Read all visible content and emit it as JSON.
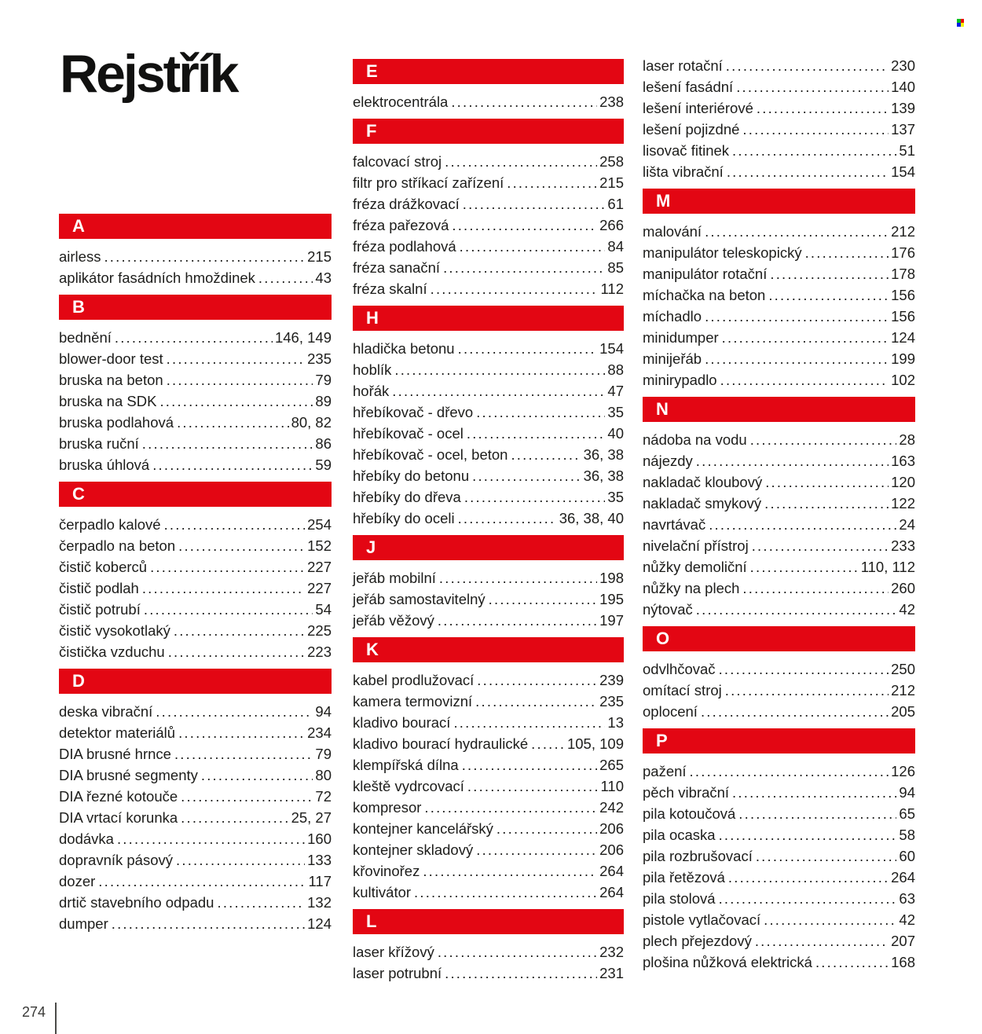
{
  "page": {
    "title": "Rejstřík",
    "footer_page_number": "274"
  },
  "colors": {
    "section_bar": "#e30613",
    "text": "#1d1d1b",
    "corner_icon_squares": [
      "#00c221",
      "#ee0000",
      "#0019e6",
      "#f6f600"
    ]
  },
  "columns": [
    {
      "sections": [
        {
          "letter": "A",
          "entries": [
            {
              "label": "airless",
              "pages": "215"
            },
            {
              "label": "aplikátor fasádních hmoždinek",
              "pages": "43"
            }
          ]
        },
        {
          "letter": "B",
          "entries": [
            {
              "label": "bednění",
              "pages": "146, 149"
            },
            {
              "label": "blower-door test",
              "pages": "235"
            },
            {
              "label": "bruska na beton",
              "pages": "79"
            },
            {
              "label": "bruska na SDK",
              "pages": "89"
            },
            {
              "label": "bruska podlahová",
              "pages": "80, 82"
            },
            {
              "label": "bruska ruční",
              "pages": "86"
            },
            {
              "label": "bruska úhlová",
              "pages": "59"
            }
          ]
        },
        {
          "letter": "C",
          "entries": [
            {
              "label": "čerpadlo kalové",
              "pages": "254"
            },
            {
              "label": "čerpadlo na beton",
              "pages": "152"
            },
            {
              "label": "čistič koberců",
              "pages": "227"
            },
            {
              "label": "čistič podlah",
              "pages": "227"
            },
            {
              "label": "čistič potrubí",
              "pages": "54"
            },
            {
              "label": "čistič vysokotlaký",
              "pages": "225"
            },
            {
              "label": "čistička vzduchu",
              "pages": "223"
            }
          ]
        },
        {
          "letter": "D",
          "entries": [
            {
              "label": "deska vibrační",
              "pages": "94"
            },
            {
              "label": "detektor materiálů",
              "pages": "234"
            },
            {
              "label": "DIA brusné hrnce",
              "pages": "79"
            },
            {
              "label": "DIA brusné segmenty",
              "pages": "80"
            },
            {
              "label": "DIA řezné kotouče",
              "pages": "72"
            },
            {
              "label": "DIA vrtací korunka",
              "pages": "25, 27"
            },
            {
              "label": "dodávka",
              "pages": "160"
            },
            {
              "label": "dopravník pásový",
              "pages": "133"
            },
            {
              "label": "dozer",
              "pages": "117"
            },
            {
              "label": "drtič stavebního odpadu",
              "pages": "132"
            },
            {
              "label": "dumper",
              "pages": "124"
            }
          ]
        }
      ]
    },
    {
      "sections": [
        {
          "letter": "E",
          "entries": [
            {
              "label": "elektrocentrála",
              "pages": "238"
            }
          ]
        },
        {
          "letter": "F",
          "entries": [
            {
              "label": "falcovací stroj",
              "pages": "258"
            },
            {
              "label": "filtr pro stříkací zařízení",
              "pages": "215"
            },
            {
              "label": "fréza drážkovací",
              "pages": "61"
            },
            {
              "label": "fréza pařezová",
              "pages": "266"
            },
            {
              "label": "fréza podlahová",
              "pages": "84"
            },
            {
              "label": "fréza sanační",
              "pages": "85"
            },
            {
              "label": "fréza skalní",
              "pages": "112"
            }
          ]
        },
        {
          "letter": "H",
          "entries": [
            {
              "label": "hladička betonu",
              "pages": "154"
            },
            {
              "label": "hoblík",
              "pages": "88"
            },
            {
              "label": "hořák",
              "pages": "47"
            },
            {
              "label": "hřebíkovač - dřevo",
              "pages": "35"
            },
            {
              "label": "hřebíkovač - ocel",
              "pages": "40"
            },
            {
              "label": "hřebíkovač - ocel, beton",
              "pages": "36, 38"
            },
            {
              "label": "hřebíky do betonu",
              "pages": "36, 38"
            },
            {
              "label": "hřebíky do dřeva",
              "pages": "35"
            },
            {
              "label": "hřebíky do oceli",
              "pages": "36, 38, 40"
            }
          ]
        },
        {
          "letter": "J",
          "entries": [
            {
              "label": "jeřáb mobilní",
              "pages": "198"
            },
            {
              "label": "jeřáb samostavitelný",
              "pages": "195"
            },
            {
              "label": "jeřáb věžový",
              "pages": "197"
            }
          ]
        },
        {
          "letter": "K",
          "entries": [
            {
              "label": "kabel prodlužovací",
              "pages": "239"
            },
            {
              "label": "kamera termovizní",
              "pages": "235"
            },
            {
              "label": "kladivo bourací",
              "pages": "13"
            },
            {
              "label": "kladivo bourací hydraulické",
              "pages": "105, 109"
            },
            {
              "label": "klempířská dílna",
              "pages": "265"
            },
            {
              "label": "kleště vydrcovací",
              "pages": "110"
            },
            {
              "label": "kompresor",
              "pages": "242"
            },
            {
              "label": "kontejner kancelářský",
              "pages": "206"
            },
            {
              "label": "kontejner skladový",
              "pages": "206"
            },
            {
              "label": "křovinořez",
              "pages": "264"
            },
            {
              "label": "kultivátor",
              "pages": "264"
            }
          ]
        },
        {
          "letter": "L",
          "entries": [
            {
              "label": "laser křížový",
              "pages": "232"
            },
            {
              "label": "laser potrubní",
              "pages": "231"
            }
          ]
        }
      ]
    },
    {
      "sections": [
        {
          "letter": null,
          "entries": [
            {
              "label": "laser rotační",
              "pages": "230"
            },
            {
              "label": "lešení fasádní",
              "pages": "140"
            },
            {
              "label": "lešení interiérové",
              "pages": "139"
            },
            {
              "label": "lešení pojizdné",
              "pages": "137"
            },
            {
              "label": "lisovač fitinek",
              "pages": "51"
            },
            {
              "label": "lišta vibrační",
              "pages": "154"
            }
          ]
        },
        {
          "letter": "M",
          "entries": [
            {
              "label": "malování",
              "pages": "212"
            },
            {
              "label": "manipulátor teleskopický",
              "pages": "176"
            },
            {
              "label": "manipulátor rotační",
              "pages": "178"
            },
            {
              "label": "míchačka na beton",
              "pages": "156"
            },
            {
              "label": "míchadlo",
              "pages": "156"
            },
            {
              "label": "minidumper",
              "pages": "124"
            },
            {
              "label": "minijeřáb",
              "pages": "199"
            },
            {
              "label": "minirypadlo",
              "pages": "102"
            }
          ]
        },
        {
          "letter": "N",
          "entries": [
            {
              "label": "nádoba na vodu",
              "pages": "28"
            },
            {
              "label": "nájezdy",
              "pages": "163"
            },
            {
              "label": "nakladač kloubový",
              "pages": "120"
            },
            {
              "label": "nakladač smykový",
              "pages": "122"
            },
            {
              "label": "navrtávač",
              "pages": "24"
            },
            {
              "label": "nivelační přístroj",
              "pages": "233"
            },
            {
              "label": "nůžky demoliční",
              "pages": "110, 112"
            },
            {
              "label": "nůžky na plech",
              "pages": "260"
            },
            {
              "label": "nýtovač",
              "pages": "42"
            }
          ]
        },
        {
          "letter": "O",
          "entries": [
            {
              "label": "odvlhčovač",
              "pages": "250"
            },
            {
              "label": "omítací stroj",
              "pages": "212"
            },
            {
              "label": "oplocení",
              "pages": "205"
            }
          ]
        },
        {
          "letter": "P",
          "entries": [
            {
              "label": "pažení",
              "pages": "126"
            },
            {
              "label": "pěch vibrační",
              "pages": "94"
            },
            {
              "label": "pila kotoučová",
              "pages": "65"
            },
            {
              "label": "pila ocaska",
              "pages": "58"
            },
            {
              "label": "pila rozbrušovací",
              "pages": "60"
            },
            {
              "label": "pila řetězová",
              "pages": "264"
            },
            {
              "label": "pila stolová",
              "pages": "63"
            },
            {
              "label": "pistole vytlačovací",
              "pages": "42"
            },
            {
              "label": "plech přejezdový",
              "pages": "207"
            },
            {
              "label": "plošina nůžková elektrická",
              "pages": "168"
            }
          ]
        }
      ]
    }
  ]
}
